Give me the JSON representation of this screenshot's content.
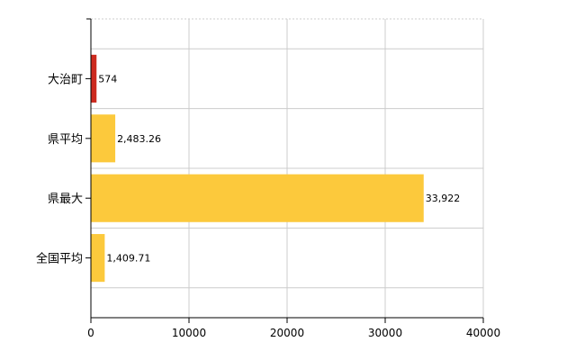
{
  "chart_data": {
    "type": "bar",
    "orientation": "horizontal",
    "categories": [
      "大治町",
      "県平均",
      "県最大",
      "全国平均"
    ],
    "values": [
      574,
      2483.26,
      33922,
      1409.71
    ],
    "data_labels": [
      "574",
      "2,483.26",
      "33,922",
      "1,409.71"
    ],
    "bar_colors": [
      "#cc2a1f",
      "#fcc93c",
      "#fcc93c",
      "#fcc93c"
    ],
    "xlim": [
      0,
      40000
    ],
    "xticks": [
      0,
      10000,
      20000,
      30000,
      40000
    ],
    "xtick_labels": [
      "0",
      "10000",
      "20000",
      "30000",
      "40000"
    ],
    "grid": true,
    "grid_color": "#cccccc",
    "title": "",
    "xlabel": "",
    "ylabel": ""
  }
}
